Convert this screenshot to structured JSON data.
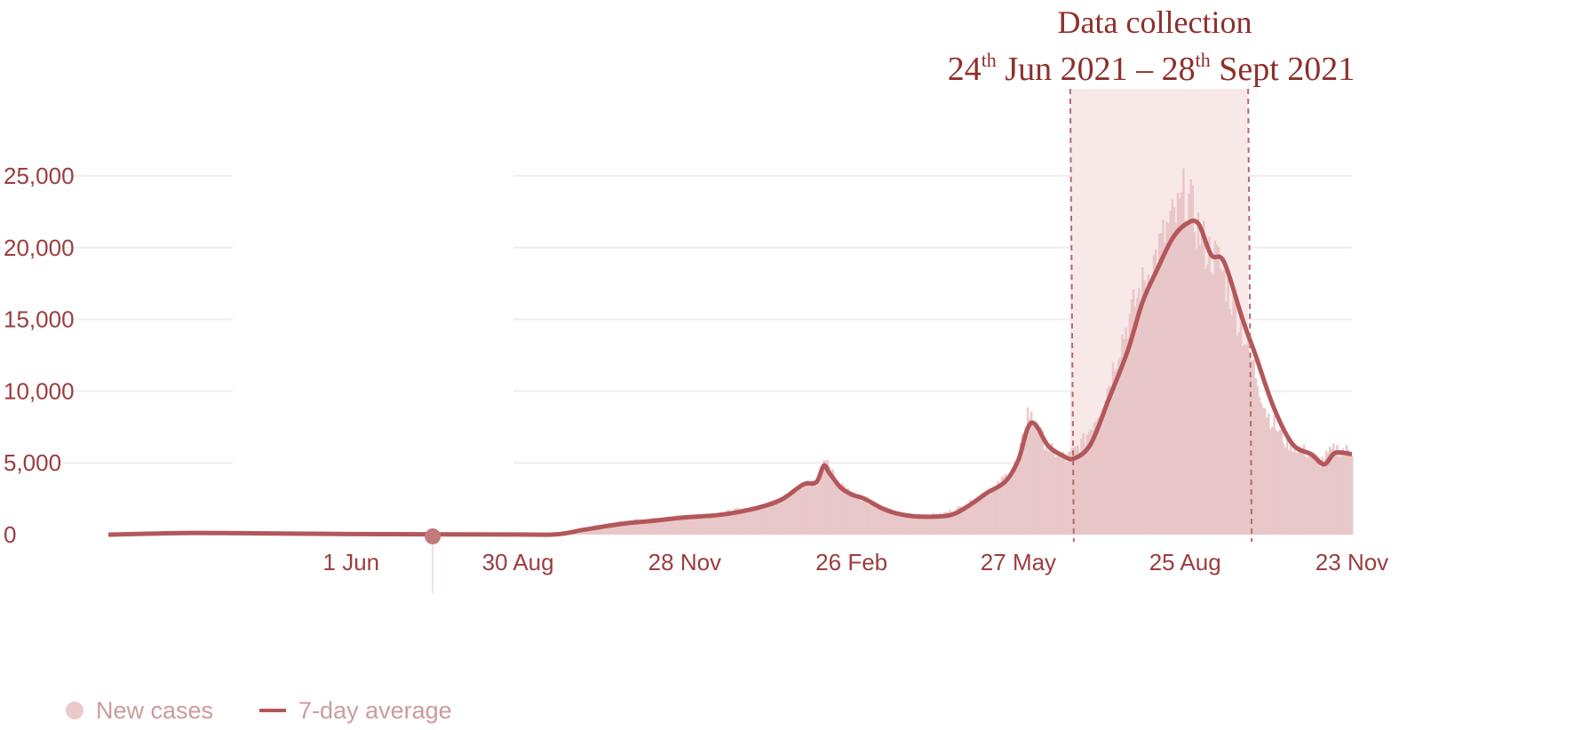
{
  "chart_data": {
    "type": "bar",
    "x_start": "2020-01-22",
    "x_end": "2021-11-23",
    "x_ticks": [
      "1 Jun",
      "30 Aug",
      "28 Nov",
      "26 Feb",
      "27 May",
      "25 Aug",
      "23 Nov"
    ],
    "x_tick_dates": [
      "2020-06-01",
      "2020-08-30",
      "2020-11-28",
      "2021-02-26",
      "2021-05-27",
      "2021-08-25",
      "2021-11-23"
    ],
    "y_ticks": [
      "0",
      "5,000",
      "10,000",
      "15,000",
      "20,000",
      "25,000"
    ],
    "y_tick_values": [
      0,
      5000,
      10000,
      15000,
      20000,
      25000
    ],
    "ylim": [
      0,
      25000
    ],
    "grid": true,
    "series": [
      {
        "name": "New cases",
        "type": "bar",
        "color": "#e8c5c7",
        "points": [
          [
            "2020-01-22",
            0
          ],
          [
            "2020-03-01",
            150
          ],
          [
            "2020-04-15",
            120
          ],
          [
            "2020-06-01",
            60
          ],
          [
            "2020-08-01",
            30
          ],
          [
            "2020-09-20",
            60
          ],
          [
            "2020-10-10",
            600
          ],
          [
            "2020-10-30",
            1000
          ],
          [
            "2020-11-15",
            1100
          ],
          [
            "2020-11-28",
            1300
          ],
          [
            "2020-12-15",
            1400
          ],
          [
            "2020-12-25",
            1700
          ],
          [
            "2021-01-05",
            1800
          ],
          [
            "2021-01-20",
            2500
          ],
          [
            "2021-01-31",
            3600
          ],
          [
            "2021-02-08",
            3500
          ],
          [
            "2021-02-12",
            5400
          ],
          [
            "2021-02-18",
            3700
          ],
          [
            "2021-02-26",
            2900
          ],
          [
            "2021-03-10",
            2100
          ],
          [
            "2021-03-25",
            1400
          ],
          [
            "2021-04-15",
            1400
          ],
          [
            "2021-04-28",
            2000
          ],
          [
            "2021-05-15",
            3300
          ],
          [
            "2021-05-27",
            5200
          ],
          [
            "2021-06-01",
            8600
          ],
          [
            "2021-06-05",
            7700
          ],
          [
            "2021-06-12",
            6000
          ],
          [
            "2021-06-22",
            5300
          ],
          [
            "2021-07-01",
            6500
          ],
          [
            "2021-07-12",
            9300
          ],
          [
            "2021-07-20",
            13000
          ],
          [
            "2021-07-30",
            16500
          ],
          [
            "2021-08-08",
            19000
          ],
          [
            "2021-08-15",
            21200
          ],
          [
            "2021-08-22",
            22500
          ],
          [
            "2021-08-25",
            24000
          ],
          [
            "2021-08-30",
            22000
          ],
          [
            "2021-09-05",
            20000
          ],
          [
            "2021-09-12",
            19000
          ],
          [
            "2021-09-20",
            16000
          ],
          [
            "2021-09-28",
            13000
          ],
          [
            "2021-10-08",
            8500
          ],
          [
            "2021-10-18",
            6500
          ],
          [
            "2021-10-30",
            5700
          ],
          [
            "2021-11-06",
            5100
          ],
          [
            "2021-11-14",
            6000
          ],
          [
            "2021-11-23",
            5800
          ]
        ]
      },
      {
        "name": "7-day average",
        "type": "line",
        "color": "#b3575b",
        "points": [
          [
            "2020-01-22",
            0
          ],
          [
            "2020-03-01",
            110
          ],
          [
            "2020-04-01",
            100
          ],
          [
            "2020-06-01",
            40
          ],
          [
            "2020-08-30",
            10
          ],
          [
            "2020-09-20",
            20
          ],
          [
            "2020-10-05",
            350
          ],
          [
            "2020-10-25",
            750
          ],
          [
            "2020-11-10",
            950
          ],
          [
            "2020-11-28",
            1200
          ],
          [
            "2020-12-15",
            1350
          ],
          [
            "2020-12-28",
            1600
          ],
          [
            "2021-01-10",
            2000
          ],
          [
            "2021-01-20",
            2500
          ],
          [
            "2021-01-31",
            3500
          ],
          [
            "2021-02-07",
            3650
          ],
          [
            "2021-02-11",
            4800
          ],
          [
            "2021-02-14",
            4300
          ],
          [
            "2021-02-20",
            3300
          ],
          [
            "2021-02-26",
            2800
          ],
          [
            "2021-03-05",
            2500
          ],
          [
            "2021-03-15",
            1800
          ],
          [
            "2021-03-25",
            1400
          ],
          [
            "2021-04-05",
            1250
          ],
          [
            "2021-04-20",
            1350
          ],
          [
            "2021-04-30",
            2000
          ],
          [
            "2021-05-10",
            2900
          ],
          [
            "2021-05-20",
            3700
          ],
          [
            "2021-05-27",
            5200
          ],
          [
            "2021-06-01",
            7400
          ],
          [
            "2021-06-05",
            7700
          ],
          [
            "2021-06-12",
            6200
          ],
          [
            "2021-06-20",
            5500
          ],
          [
            "2021-06-26",
            5300
          ],
          [
            "2021-07-05",
            6300
          ],
          [
            "2021-07-15",
            9500
          ],
          [
            "2021-07-25",
            12800
          ],
          [
            "2021-08-02",
            16200
          ],
          [
            "2021-08-10",
            18500
          ],
          [
            "2021-08-18",
            20600
          ],
          [
            "2021-08-25",
            21600
          ],
          [
            "2021-09-01",
            21700
          ],
          [
            "2021-09-08",
            19500
          ],
          [
            "2021-09-15",
            19000
          ],
          [
            "2021-09-25",
            15000
          ],
          [
            "2021-10-02",
            12500
          ],
          [
            "2021-10-12",
            8800
          ],
          [
            "2021-10-22",
            6300
          ],
          [
            "2021-11-01",
            5600
          ],
          [
            "2021-11-08",
            4900
          ],
          [
            "2021-11-14",
            5700
          ],
          [
            "2021-11-23",
            5600
          ]
        ]
      }
    ],
    "highlight": {
      "start": "2021-06-24",
      "end": "2021-09-28",
      "color": "#f8e8e8"
    },
    "hover_marker": {
      "date": "2020-07-15",
      "value": 0
    },
    "annotation": {
      "line1": "Data collection",
      "line2_start_day": "24",
      "line2_start_sup": "th",
      "line2_middle": " Jun 2021 – ",
      "line2_end_day": "28",
      "line2_end_sup": "th",
      "line2_tail": " Sept 2021"
    },
    "legend_position": "bottom-left"
  },
  "legend": {
    "new_cases_label": "New cases",
    "average_label": "7-day average"
  }
}
